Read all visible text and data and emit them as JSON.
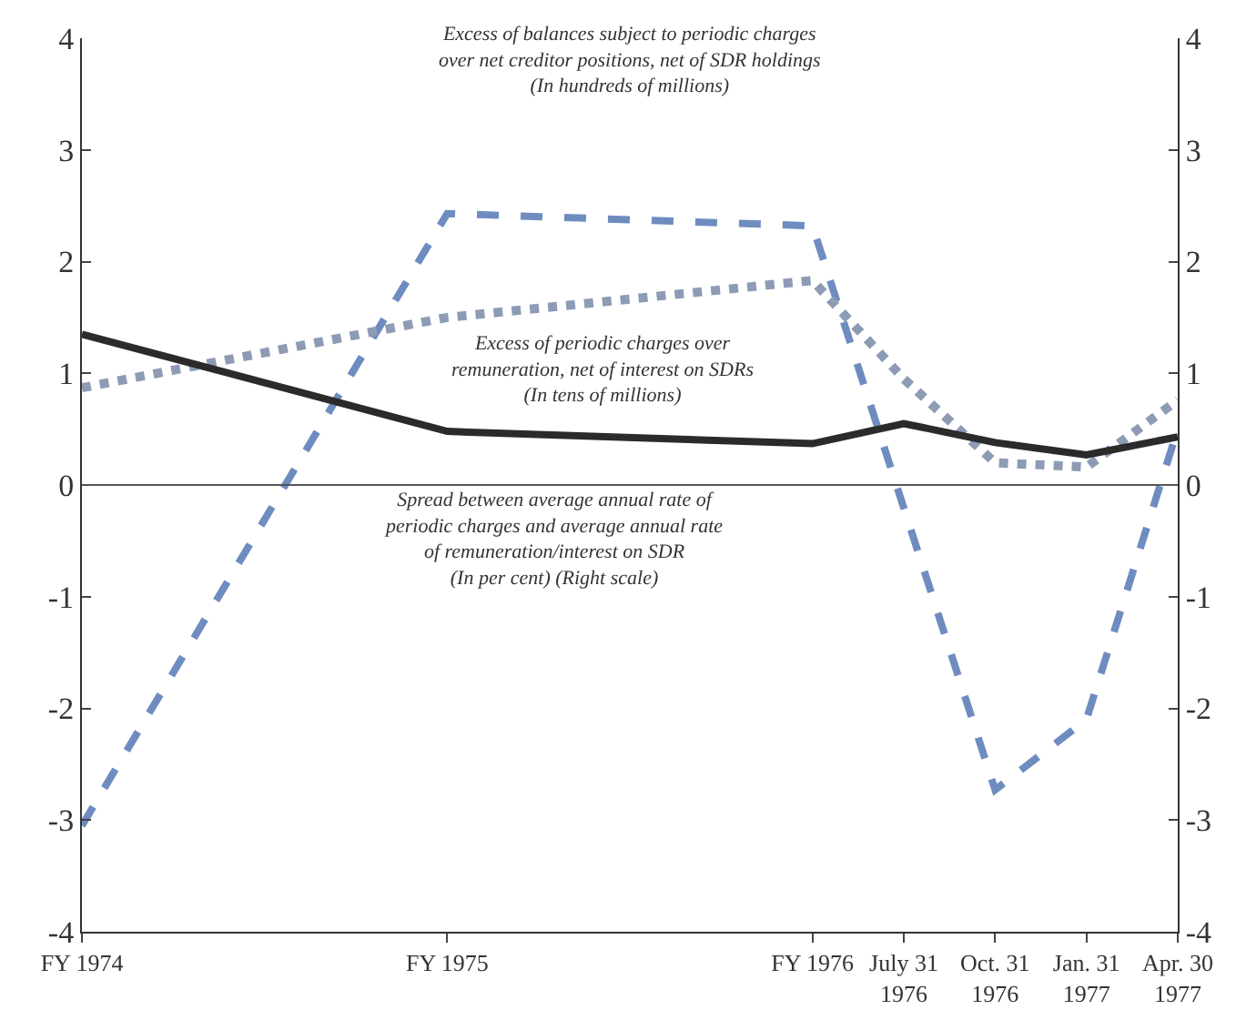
{
  "chart_data": {
    "type": "line",
    "categories": [
      "FY 1974",
      null,
      null,
      null,
      "FY 1975",
      null,
      null,
      null,
      "FY 1976",
      "July 31\n1976",
      "Oct. 31\n1976",
      "Jan. 31\n1977",
      "Apr. 30\n1977"
    ],
    "ylim": [
      -4,
      4
    ],
    "yticks": [
      -4,
      -3,
      -2,
      -1,
      0,
      1,
      2,
      3,
      4
    ],
    "y2lim": [
      -4,
      4
    ],
    "y2ticks": [
      -4,
      -3,
      -2,
      -1,
      0,
      1,
      2,
      3,
      4
    ],
    "series": [
      {
        "color": "#6f8cc0",
        "line_style": "dashed",
        "values": [
          -3.05,
          null,
          null,
          null,
          2.43,
          null,
          null,
          null,
          2.32,
          null,
          -2.73,
          -2.1,
          0.5
        ]
      },
      {
        "color": "#8e9bb5",
        "line_style": "dotted",
        "values": [
          0.87,
          null,
          null,
          null,
          1.5,
          null,
          null,
          null,
          1.83,
          0.95,
          0.2,
          0.16,
          0.76
        ]
      },
      {
        "color": "#2b2b2b",
        "line_style": "solid",
        "axis": "y2",
        "values": [
          1.35,
          null,
          null,
          null,
          0.48,
          null,
          null,
          null,
          0.37,
          0.55,
          0.38,
          0.27,
          0.43
        ]
      }
    ],
    "ref_lines": [
      {
        "axis": "y",
        "value": 0,
        "color": "#555555",
        "line_style": "solid"
      }
    ],
    "annotations": [
      "Excess of balances subject to periodic charges\nover net creditor positions, net of SDR holdings\n(In hundreds of millions)",
      "Excess of periodic charges over\nremuneration, net of interest on SDRs\n(In tens of millions)",
      "Spread between average annual rate of\nperiodic charges and average annual rate\nof remuneration/interest on SDR\n(In per cent) (Right scale)"
    ],
    "marker": "none"
  }
}
